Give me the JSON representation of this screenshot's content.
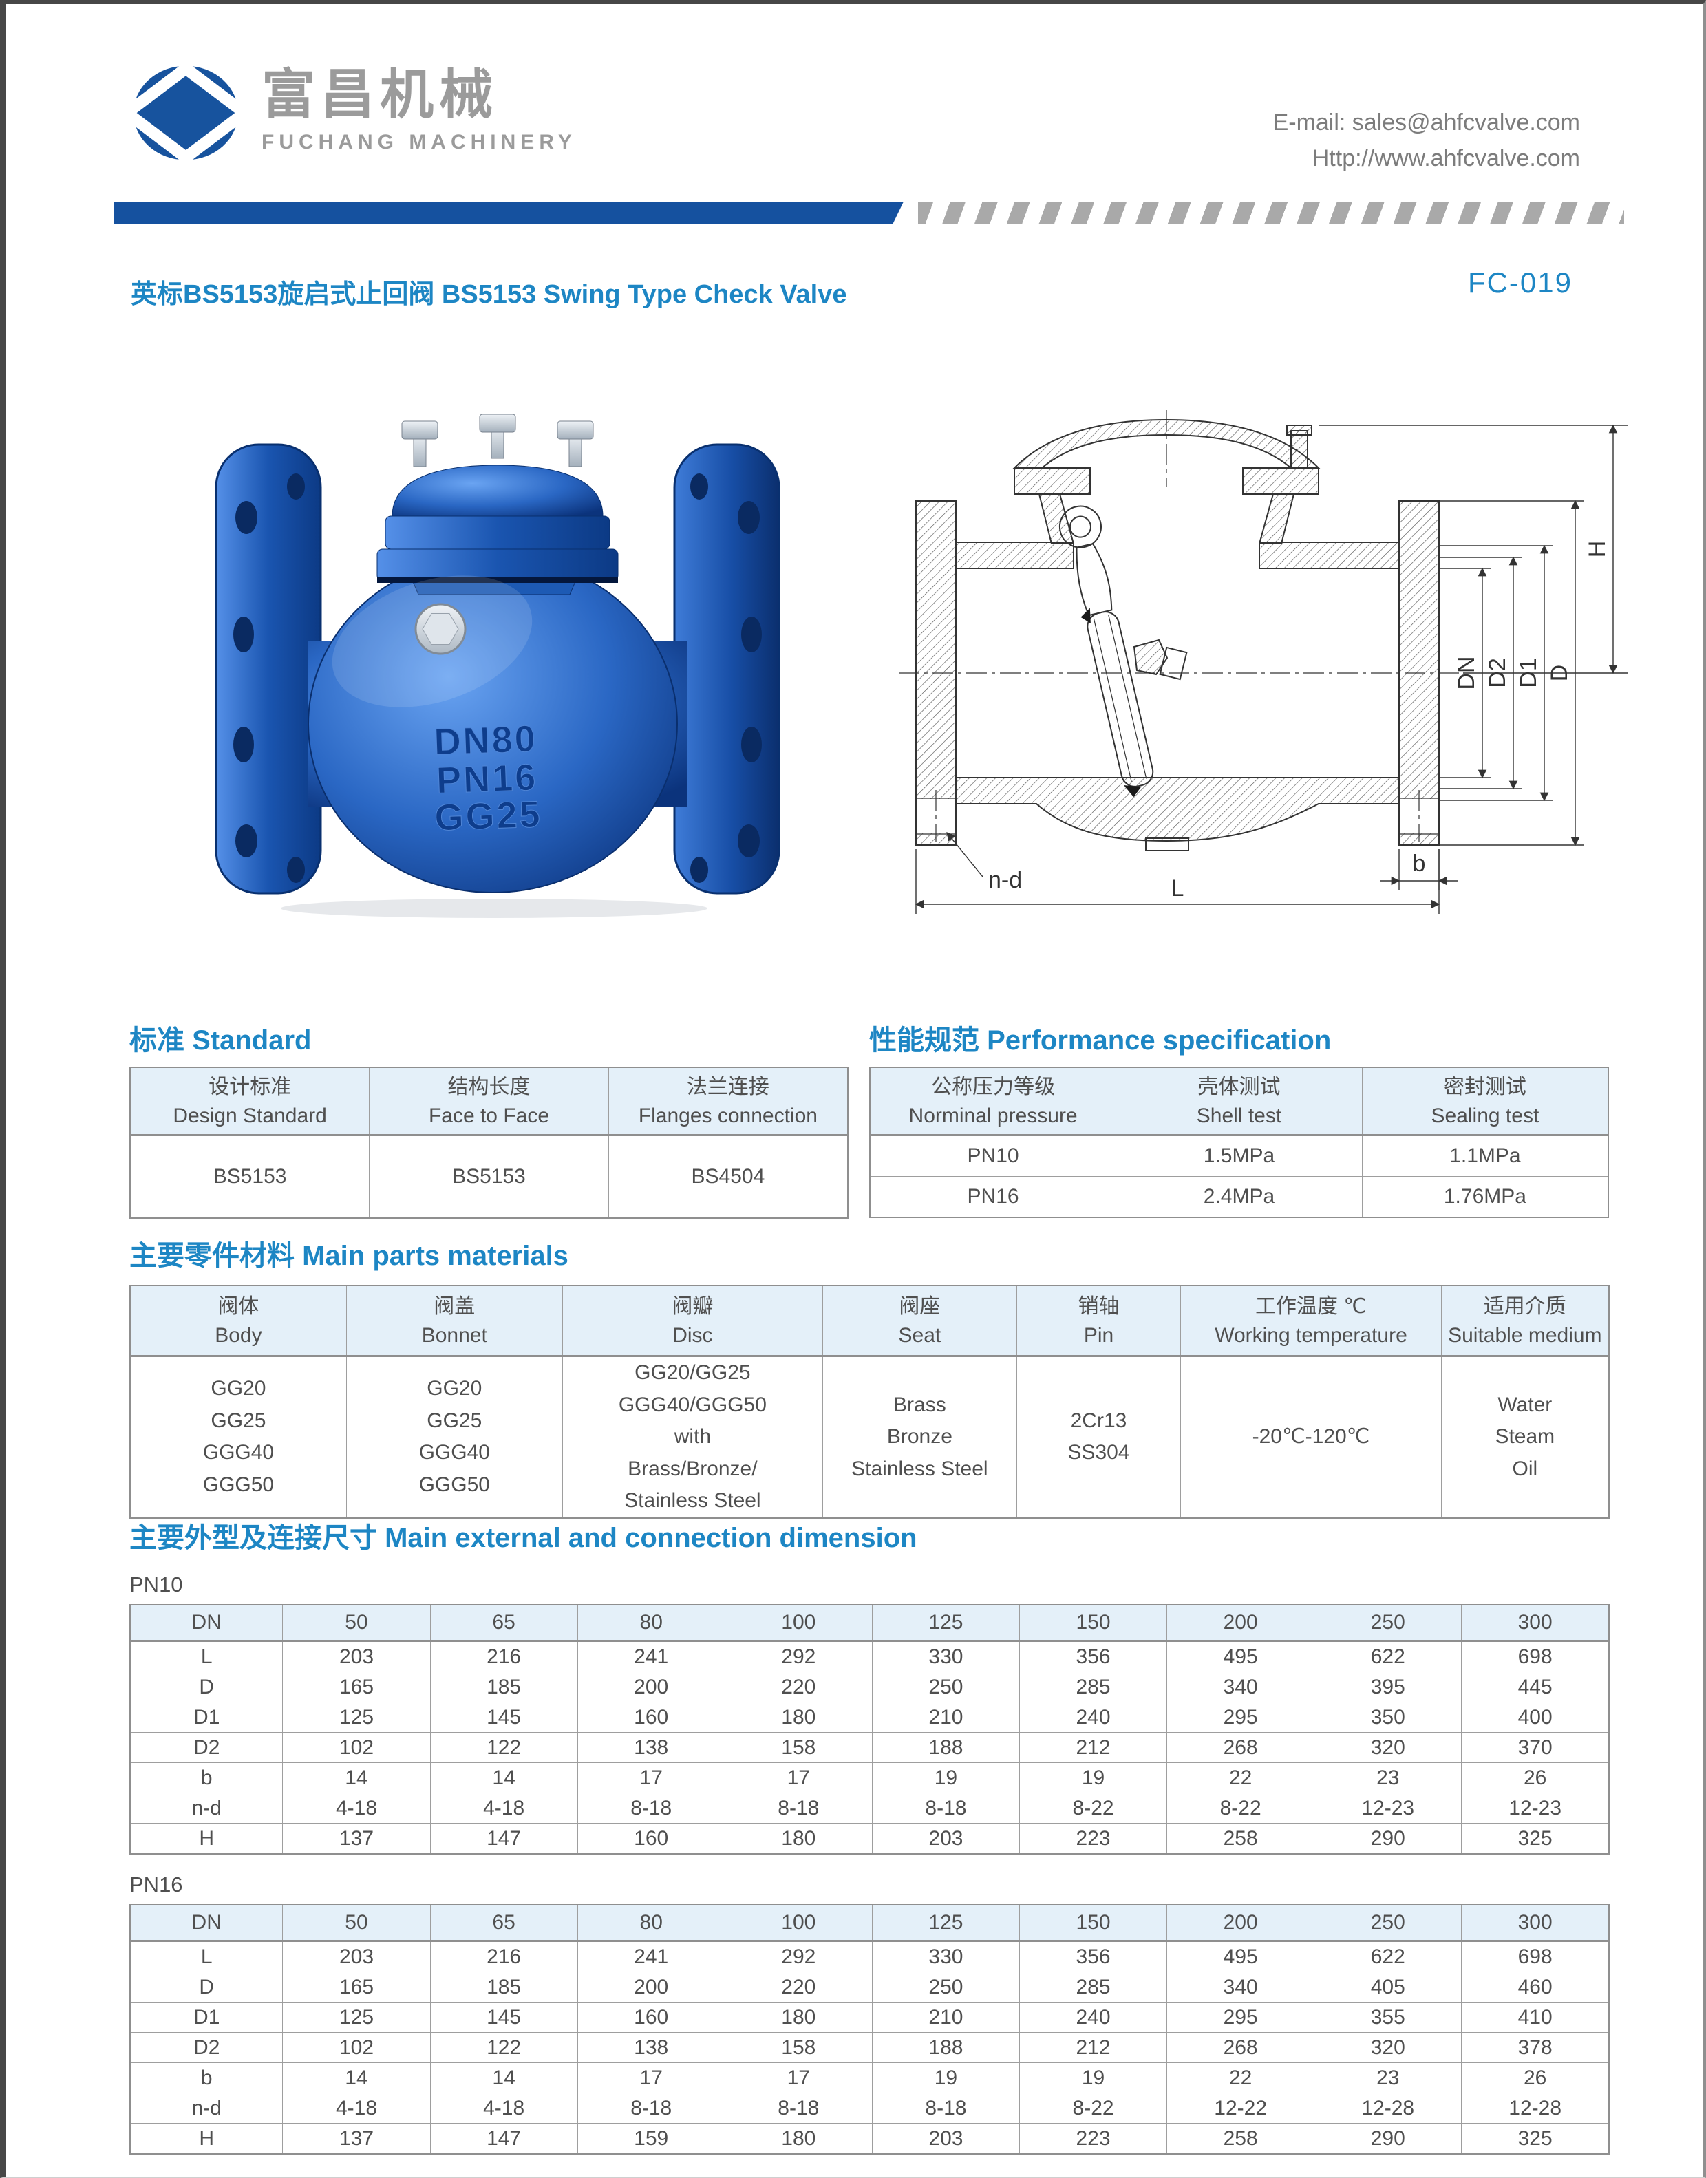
{
  "colors": {
    "accent_blue": "#15519f",
    "title_blue": "#1d86c4",
    "table_header_bg": "#e4f0f9"
  },
  "header": {
    "company_cn": "富昌机械",
    "company_en": "FUCHANG MACHINERY",
    "email": "E-mail: sales@ahfcvalve.com",
    "website": "Http://www.ahfcvalve.com"
  },
  "title": {
    "text": "英标BS5153旋启式止回阀 BS5153 Swing Type Check Valve",
    "code": "FC-019"
  },
  "photo": {
    "embossed": [
      "DN80",
      "PN16",
      "GG25"
    ]
  },
  "drawing": {
    "labels": {
      "h": "H",
      "dn": "DN",
      "d2": "D2",
      "d1": "D1",
      "d": "D",
      "nd": "n-d",
      "l": "L",
      "b": "b"
    }
  },
  "sections": {
    "standard_title": "标准 Standard",
    "performance_title": "性能规范 Performance specification",
    "materials_title": "主要零件材料 Main parts materials",
    "dimensions_title": "主要外型及连接尺寸 Main external and connection dimension",
    "pn10_label": "PN10",
    "pn16_label": "PN16"
  },
  "standard_table": {
    "headers": [
      {
        "cn": "设计标准",
        "en": "Design Standard"
      },
      {
        "cn": "结构长度",
        "en": "Face to Face"
      },
      {
        "cn": "法兰连接",
        "en": "Flanges connection"
      }
    ],
    "rows": [
      [
        "BS5153",
        "BS5153",
        "BS4504"
      ]
    ]
  },
  "performance_table": {
    "headers": [
      {
        "cn": "公称压力等级",
        "en": "Norminal pressure"
      },
      {
        "cn": "壳体测试",
        "en": "Shell test"
      },
      {
        "cn": "密封测试",
        "en": "Sealing test"
      }
    ],
    "rows": [
      [
        "PN10",
        "1.5MPa",
        "1.1MPa"
      ],
      [
        "PN16",
        "2.4MPa",
        "1.76MPa"
      ]
    ]
  },
  "materials_table": {
    "headers": [
      {
        "cn": "阀体",
        "en": "Body"
      },
      {
        "cn": "阀盖",
        "en": "Bonnet"
      },
      {
        "cn": "阀瓣",
        "en": "Disc"
      },
      {
        "cn": "阀座",
        "en": "Seat"
      },
      {
        "cn": "销轴",
        "en": "Pin"
      },
      {
        "cn": "工作温度 ℃",
        "en": "Working temperature"
      },
      {
        "cn": "适用介质",
        "en": "Suitable medium"
      }
    ],
    "rows": [
      [
        "GG20\nGG25\nGGG40\nGGG50",
        "GG20\nGG25\nGGG40\nGGG50",
        "GG20/GG25\nGGG40/GGG50\nwith\nBrass/Bronze/\nStainless Steel",
        "Brass\nBronze\nStainless Steel",
        "2Cr13\nSS304",
        "-20℃-120℃",
        "Water\nSteam\nOil"
      ]
    ]
  },
  "dimensions": {
    "pn10": {
      "cols": [
        "DN",
        "50",
        "65",
        "80",
        "100",
        "125",
        "150",
        "200",
        "250",
        "300"
      ],
      "rows": [
        {
          "label": "L",
          "values": [
            "203",
            "216",
            "241",
            "292",
            "330",
            "356",
            "495",
            "622",
            "698"
          ]
        },
        {
          "label": "D",
          "values": [
            "165",
            "185",
            "200",
            "220",
            "250",
            "285",
            "340",
            "395",
            "445"
          ]
        },
        {
          "label": "D1",
          "values": [
            "125",
            "145",
            "160",
            "180",
            "210",
            "240",
            "295",
            "350",
            "400"
          ]
        },
        {
          "label": "D2",
          "values": [
            "102",
            "122",
            "138",
            "158",
            "188",
            "212",
            "268",
            "320",
            "370"
          ]
        },
        {
          "label": "b",
          "values": [
            "14",
            "14",
            "17",
            "17",
            "19",
            "19",
            "22",
            "23",
            "26"
          ]
        },
        {
          "label": "n-d",
          "values": [
            "4-18",
            "4-18",
            "8-18",
            "8-18",
            "8-18",
            "8-22",
            "8-22",
            "12-23",
            "12-23"
          ]
        },
        {
          "label": "H",
          "values": [
            "137",
            "147",
            "160",
            "180",
            "203",
            "223",
            "258",
            "290",
            "325"
          ]
        }
      ]
    },
    "pn16": {
      "cols": [
        "DN",
        "50",
        "65",
        "80",
        "100",
        "125",
        "150",
        "200",
        "250",
        "300"
      ],
      "rows": [
        {
          "label": "L",
          "values": [
            "203",
            "216",
            "241",
            "292",
            "330",
            "356",
            "495",
            "622",
            "698"
          ]
        },
        {
          "label": "D",
          "values": [
            "165",
            "185",
            "200",
            "220",
            "250",
            "285",
            "340",
            "405",
            "460"
          ]
        },
        {
          "label": "D1",
          "values": [
            "125",
            "145",
            "160",
            "180",
            "210",
            "240",
            "295",
            "355",
            "410"
          ]
        },
        {
          "label": "D2",
          "values": [
            "102",
            "122",
            "138",
            "158",
            "188",
            "212",
            "268",
            "320",
            "378"
          ]
        },
        {
          "label": "b",
          "values": [
            "14",
            "14",
            "17",
            "17",
            "19",
            "19",
            "22",
            "23",
            "26"
          ]
        },
        {
          "label": "n-d",
          "values": [
            "4-18",
            "4-18",
            "8-18",
            "8-18",
            "8-18",
            "8-22",
            "12-22",
            "12-28",
            "12-28"
          ]
        },
        {
          "label": "H",
          "values": [
            "137",
            "147",
            "159",
            "180",
            "203",
            "223",
            "258",
            "290",
            "325"
          ]
        }
      ]
    }
  }
}
